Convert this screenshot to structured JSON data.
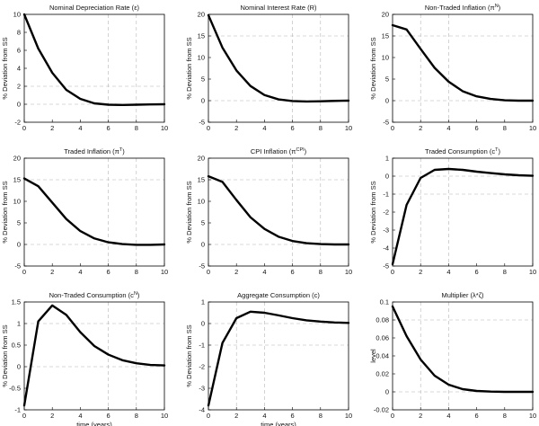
{
  "chart_data": [
    {
      "type": "line",
      "title": "Nominal Depreciation Rate (ε)",
      "title_main": "Nominal Depreciation Rate (",
      "title_sym": "ε",
      "title_sup": "",
      "title_end": ")",
      "ylabel": "% Deviation from SS",
      "xlabel": "",
      "xlim": [
        0,
        10
      ],
      "ylim": [
        -2,
        10
      ],
      "xticks": [
        0,
        2,
        4,
        6,
        8,
        10
      ],
      "yticks": [
        -2,
        0,
        2,
        4,
        6,
        8,
        10
      ],
      "ygrid": [
        2,
        0
      ],
      "xgrid": [
        6,
        8
      ],
      "x": [
        0,
        1,
        2,
        3,
        4,
        5,
        6,
        7,
        8,
        9,
        10
      ],
      "y": [
        10,
        6.2,
        3.5,
        1.6,
        0.6,
        0.1,
        -0.05,
        -0.08,
        -0.05,
        -0.02,
        0
      ]
    },
    {
      "type": "line",
      "title": "Nominal Interest Rate (R)",
      "title_main": "Nominal Interest Rate (R)",
      "title_sym": "",
      "title_sup": "",
      "title_end": "",
      "ylabel": "% Deviation from SS",
      "xlabel": "",
      "xlim": [
        0,
        10
      ],
      "ylim": [
        -5,
        20
      ],
      "xticks": [
        0,
        2,
        4,
        6,
        8,
        10
      ],
      "yticks": [
        -5,
        0,
        5,
        10,
        15,
        20
      ],
      "ygrid": [
        15,
        0
      ],
      "xgrid": [
        6,
        8
      ],
      "x": [
        0,
        1,
        2,
        3,
        4,
        5,
        6,
        7,
        8,
        9,
        10
      ],
      "y": [
        19.8,
        12.3,
        7,
        3.4,
        1.3,
        0.3,
        -0.1,
        -0.2,
        -0.15,
        -0.05,
        0
      ]
    },
    {
      "type": "line",
      "title": "Non-Traded Inflation (πN)",
      "title_main": "Non-Traded Inflation (",
      "title_sym": "π",
      "title_sup": "N",
      "title_end": ")",
      "ylabel": "% Deviation from SS",
      "xlabel": "",
      "xlim": [
        0,
        10
      ],
      "ylim": [
        -5,
        20
      ],
      "xticks": [
        0,
        2,
        4,
        6,
        8,
        10
      ],
      "yticks": [
        -5,
        0,
        5,
        10,
        15,
        20
      ],
      "ygrid": [
        15,
        0
      ],
      "xgrid": [
        2,
        4
      ],
      "x": [
        0,
        1,
        2,
        3,
        4,
        5,
        6,
        7,
        8,
        9,
        10
      ],
      "y": [
        17.5,
        16.5,
        12,
        7.6,
        4.4,
        2.2,
        1,
        0.4,
        0.1,
        0,
        0
      ]
    },
    {
      "type": "line",
      "title": "Traded Inflation (πT)",
      "title_main": "Traded Inflation (",
      "title_sym": "π",
      "title_sup": "T",
      "title_end": ")",
      "ylabel": "% Deviation from SS",
      "xlabel": "",
      "xlim": [
        0,
        10
      ],
      "ylim": [
        -5,
        20
      ],
      "xticks": [
        0,
        2,
        4,
        6,
        8,
        10
      ],
      "yticks": [
        -5,
        0,
        5,
        10,
        15,
        20
      ],
      "ygrid": [
        15,
        0
      ],
      "xgrid": [
        6,
        8
      ],
      "x": [
        0,
        1,
        2,
        3,
        4,
        5,
        6,
        7,
        8,
        9,
        10
      ],
      "y": [
        15.3,
        13.5,
        9.7,
        5.9,
        3.1,
        1.4,
        0.5,
        0.1,
        -0.1,
        -0.1,
        0
      ]
    },
    {
      "type": "line",
      "title": "CPI Inflation (πCPI)",
      "title_main": "CPI Inflation (",
      "title_sym": "π",
      "title_sup": "CPI",
      "title_end": ")",
      "ylabel": "% Deviation from SS",
      "xlabel": "",
      "xlim": [
        0,
        10
      ],
      "ylim": [
        -5,
        20
      ],
      "xticks": [
        0,
        2,
        4,
        6,
        8,
        10
      ],
      "yticks": [
        -5,
        0,
        5,
        10,
        15,
        20
      ],
      "ygrid": [
        15,
        0
      ],
      "xgrid": [
        6,
        8
      ],
      "x": [
        0,
        1,
        2,
        3,
        4,
        5,
        6,
        7,
        8,
        9,
        10
      ],
      "y": [
        15.8,
        14.5,
        10.3,
        6.3,
        3.6,
        1.8,
        0.8,
        0.3,
        0.1,
        0,
        0
      ]
    },
    {
      "type": "line",
      "title": "Traded Consumption (cT)",
      "title_main": "Traded Consumption (c",
      "title_sym": "",
      "title_sup": "T",
      "title_end": ")",
      "ylabel": "% Deviation from SS",
      "xlabel": "",
      "xlim": [
        0,
        10
      ],
      "ylim": [
        -5,
        1
      ],
      "xticks": [
        0,
        2,
        4,
        6,
        8,
        10
      ],
      "yticks": [
        -5,
        -4,
        -3,
        -2,
        -1,
        0,
        1
      ],
      "ygrid": [
        0,
        -1
      ],
      "xgrid": [
        2,
        4
      ],
      "x": [
        0,
        1,
        2,
        3,
        4,
        5,
        6,
        7,
        8,
        9,
        10
      ],
      "y": [
        -4.9,
        -1.6,
        -0.1,
        0.35,
        0.4,
        0.35,
        0.25,
        0.17,
        0.1,
        0.05,
        0.02
      ]
    },
    {
      "type": "line",
      "title": "Non-Traded Consumption (cN)",
      "title_main": "Non-Traded Consumption (c",
      "title_sym": "",
      "title_sup": "N",
      "title_end": ")",
      "ylabel": "% Deviation from SS",
      "xlabel": "time (years)",
      "xlim": [
        0,
        10
      ],
      "ylim": [
        -1,
        1.5
      ],
      "xticks": [
        0,
        2,
        4,
        6,
        8,
        10
      ],
      "yticks": [
        -1,
        -0.5,
        0,
        0.5,
        1,
        1.5
      ],
      "ygrid": [
        1,
        0
      ],
      "xgrid": [
        6,
        8
      ],
      "x": [
        0,
        1,
        2,
        3,
        4,
        5,
        6,
        7,
        8,
        9,
        10
      ],
      "y": [
        -0.9,
        1.05,
        1.42,
        1.2,
        0.8,
        0.48,
        0.28,
        0.15,
        0.08,
        0.04,
        0.03
      ]
    },
    {
      "type": "line",
      "title": "Aggregate Consumption (c)",
      "title_main": "Aggregate Consumption (c)",
      "title_sym": "",
      "title_sup": "",
      "title_end": "",
      "ylabel": "% Deviation from SS",
      "xlabel": "time (years)",
      "xlim": [
        0,
        10
      ],
      "ylim": [
        -4,
        1
      ],
      "xticks": [
        0,
        2,
        4,
        6,
        8,
        10
      ],
      "yticks": [
        -4,
        -3,
        -2,
        -1,
        0,
        1
      ],
      "ygrid": [
        0,
        -1
      ],
      "xgrid": [
        2,
        4
      ],
      "x": [
        0,
        1,
        2,
        3,
        4,
        5,
        6,
        7,
        8,
        9,
        10
      ],
      "y": [
        -3.8,
        -0.9,
        0.25,
        0.55,
        0.5,
        0.38,
        0.25,
        0.15,
        0.09,
        0.05,
        0.03
      ]
    },
    {
      "type": "line",
      "title": "Multiplier (λ*ζ)",
      "title_main": "Multiplier (",
      "title_sym": "λ*ζ",
      "title_sup": "",
      "title_end": ")",
      "ylabel": "level",
      "xlabel": "",
      "xlim": [
        0,
        10
      ],
      "ylim": [
        -0.02,
        0.1
      ],
      "xticks": [
        0,
        2,
        4,
        6,
        8,
        10
      ],
      "yticks": [
        -0.02,
        0,
        0.02,
        0.04,
        0.06,
        0.08,
        0.1
      ],
      "ygrid": [
        0.08,
        0
      ],
      "xgrid": [
        2,
        4
      ],
      "x": [
        0,
        1,
        2,
        3,
        4,
        5,
        6,
        7,
        8,
        9,
        10
      ],
      "y": [
        0.095,
        0.062,
        0.036,
        0.018,
        0.008,
        0.003,
        0.001,
        0.0003,
        0,
        0,
        0
      ]
    }
  ]
}
